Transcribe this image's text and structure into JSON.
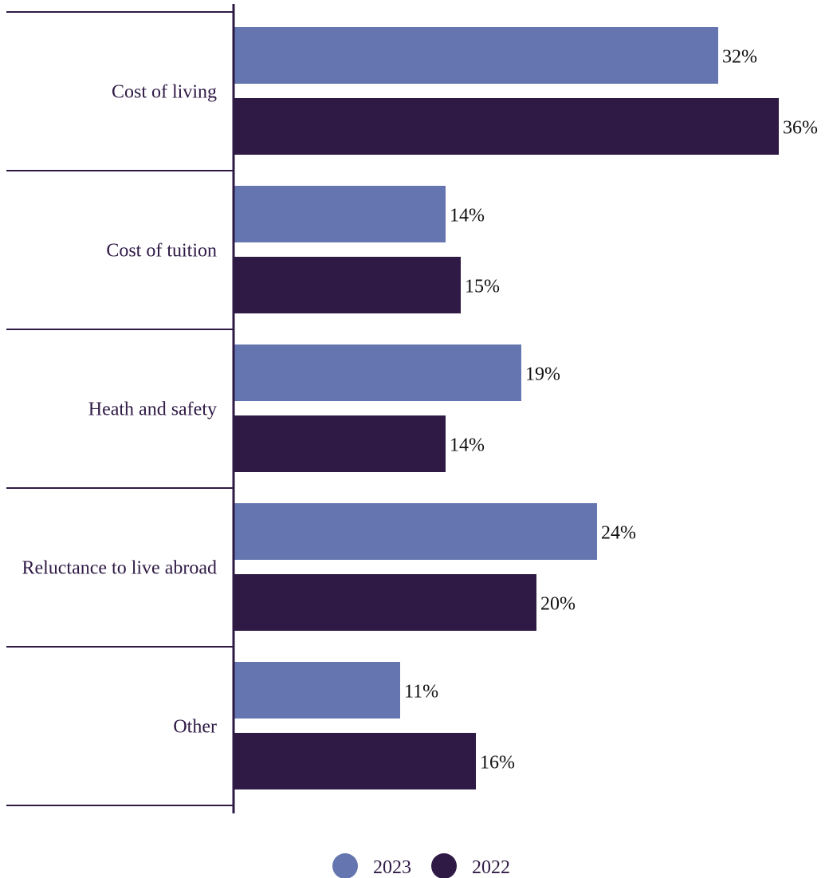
{
  "chart_data": {
    "type": "bar",
    "orientation": "horizontal",
    "categories": [
      "Cost of living",
      "Cost of tuition",
      "Heath and safety",
      "Reluctance to live abroad",
      "Other"
    ],
    "series": [
      {
        "name": "2023",
        "values": [
          32,
          14,
          19,
          24,
          11
        ],
        "labels": [
          "32%",
          "14%",
          "19%",
          "24%",
          "11%"
        ],
        "color": "#6475b0"
      },
      {
        "name": "2022",
        "values": [
          36,
          15,
          14,
          20,
          16
        ],
        "labels": [
          "36%",
          "15%",
          "14%",
          "20%",
          "16%"
        ],
        "color": "#2e1a44"
      }
    ],
    "title": "",
    "xlabel": "",
    "ylabel": "",
    "xlim": [
      0,
      36
    ],
    "grid": false,
    "legend": "bottom-center"
  }
}
